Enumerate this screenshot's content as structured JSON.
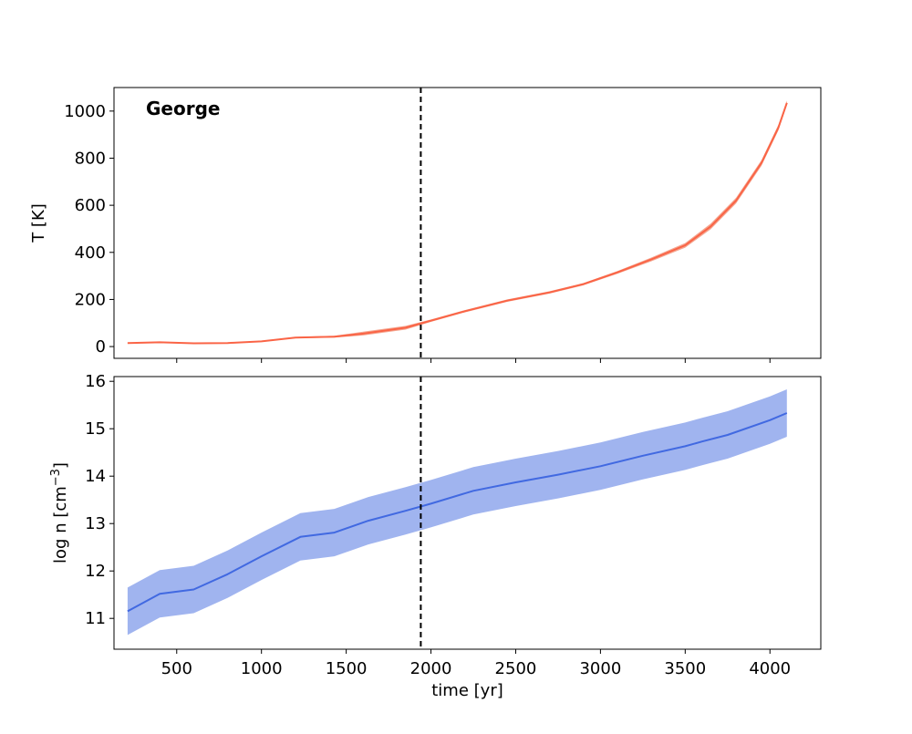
{
  "chart_data": [
    {
      "type": "line",
      "annotation": "George",
      "ylabel": "T [K]",
      "xlim": [
        130,
        4300
      ],
      "ylim": [
        -50,
        1100
      ],
      "yticks": [
        0,
        200,
        400,
        600,
        800,
        1000
      ],
      "xticks": [
        500,
        1000,
        1500,
        2000,
        2500,
        3000,
        3500,
        4000
      ],
      "xtick_labels_shown": false,
      "vline_x": 1940,
      "color": "#fa6446",
      "band_color": "#f4a58f",
      "series": [
        {
          "x": [
            210,
            400,
            600,
            800,
            1000,
            1200,
            1430,
            1600,
            1850,
            2000,
            2200,
            2450,
            2700,
            2900,
            3100,
            3300,
            3500,
            3650,
            3800,
            3950,
            4050,
            4100
          ],
          "values": [
            15,
            18,
            14,
            15,
            22,
            38,
            42,
            55,
            80,
            110,
            150,
            195,
            230,
            265,
            315,
            370,
            430,
            510,
            620,
            780,
            930,
            1035
          ],
          "band_half_width": [
            2,
            2,
            2,
            2,
            2,
            3,
            4,
            8,
            8,
            5,
            5,
            5,
            5,
            5,
            6,
            8,
            10,
            12,
            12,
            12,
            12,
            10
          ]
        }
      ],
      "grid": false
    },
    {
      "type": "line",
      "xlabel": "time [yr]",
      "ylabel": "log n [cm",
      "ylabel_sup": "−3",
      "ylabel_end": "]",
      "xlim": [
        130,
        4300
      ],
      "ylim": [
        10.35,
        16.1
      ],
      "yticks": [
        11,
        12,
        13,
        14,
        15,
        16
      ],
      "xticks": [
        500,
        1000,
        1500,
        2000,
        2500,
        3000,
        3500,
        4000
      ],
      "vline_x": 1940,
      "color": "#4169e1",
      "band_color": "#a0b4ef",
      "series": [
        {
          "x": [
            210,
            400,
            600,
            800,
            1000,
            1230,
            1430,
            1630,
            1850,
            2000,
            2250,
            2500,
            2750,
            3000,
            3250,
            3500,
            3600,
            3750,
            4000,
            4100
          ],
          "values": [
            11.15,
            11.52,
            11.61,
            11.93,
            12.31,
            12.72,
            12.81,
            13.06,
            13.27,
            13.42,
            13.69,
            13.87,
            14.03,
            14.21,
            14.43,
            14.63,
            14.73,
            14.87,
            15.18,
            15.33
          ],
          "band_half_width": 0.5
        }
      ],
      "grid": false
    }
  ]
}
